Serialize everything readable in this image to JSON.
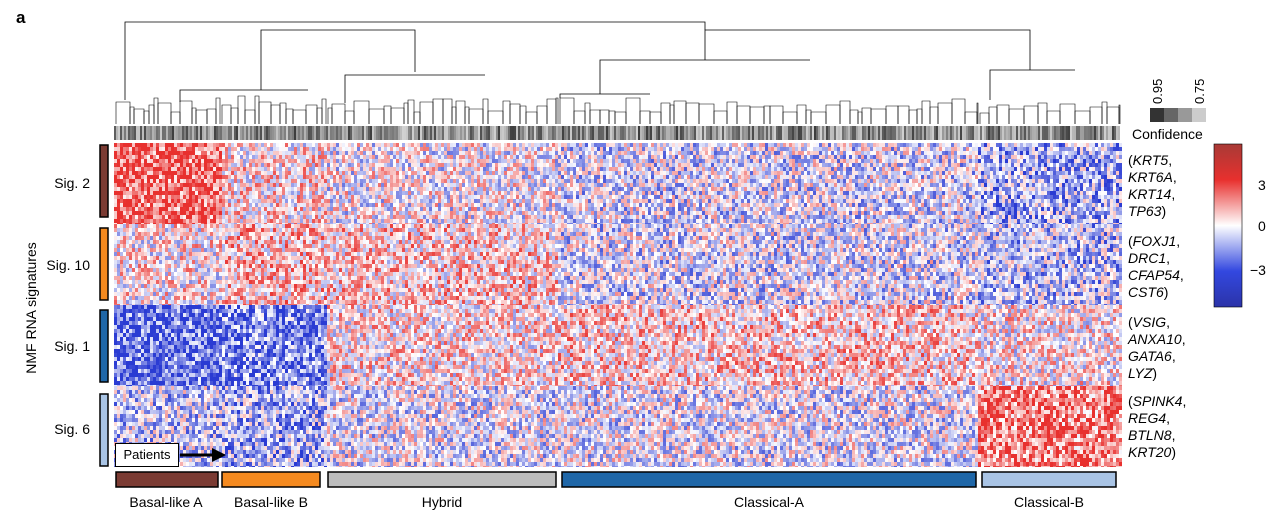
{
  "panel_label": "a",
  "y_axis_label": "NMF RNA signatures",
  "confidence": {
    "label": "Confidence",
    "legend_high": "0.95",
    "legend_low": "0.75"
  },
  "colorbar": {
    "ticks": [
      "3",
      "0",
      "−3"
    ],
    "values": [
      3,
      0,
      -3
    ],
    "colors": {
      "high": "#e8302e",
      "mid": "#ffffff",
      "low": "#2a3bd3"
    }
  },
  "signatures": [
    {
      "label": "Sig. 2",
      "color": "#7b3b33",
      "genes": [
        "KRT5",
        "KRT6A",
        "KRT14",
        "TP63"
      ]
    },
    {
      "label": "Sig. 10",
      "color": "#f58a1f",
      "genes": [
        "FOXJ1",
        "DRC1",
        "CFAP54",
        "CST6"
      ]
    },
    {
      "label": "Sig. 1",
      "color": "#1f67a8",
      "genes": [
        "VSIG",
        "ANXA10",
        "GATA6",
        "LYZ"
      ]
    },
    {
      "label": "Sig. 6",
      "color": "#a9c4e5",
      "genes": [
        "SPINK4",
        "REG4",
        "BTLN8",
        "KRT20"
      ]
    }
  ],
  "subtypes": [
    {
      "label": "Basal-like A",
      "color": "#7b3b33",
      "dominant_signature": "Sig. 2"
    },
    {
      "label": "Basal-like B",
      "color": "#f58a1f",
      "dominant_signature": "Sig. 10"
    },
    {
      "label": "Hybrid",
      "color": "#bdbdbd",
      "dominant_signature": ""
    },
    {
      "label": "Classical-A",
      "color": "#1f67a8",
      "dominant_signature": "Sig. 1"
    },
    {
      "label": "Classical-B",
      "color": "#a9c4e5",
      "dominant_signature": "Sig. 6"
    }
  ],
  "patients_label": "Patients"
}
